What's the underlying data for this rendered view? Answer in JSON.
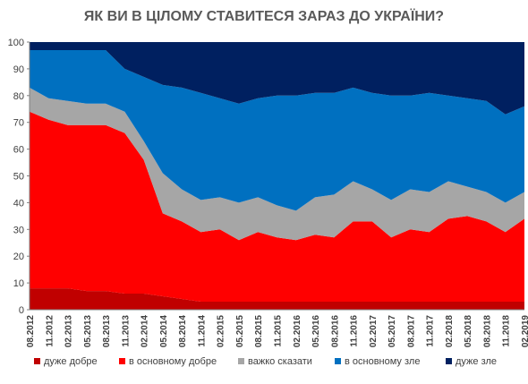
{
  "chart_data": {
    "type": "area",
    "stacked": true,
    "title": "ЯК ВИ В ЦІЛОМУ СТАВИТЕСЯ ЗАРАЗ ДО УКРАЇНИ?",
    "xlabel": "",
    "ylabel": "",
    "ylim": [
      0,
      100
    ],
    "yticks": [
      0,
      10,
      20,
      30,
      40,
      50,
      60,
      70,
      80,
      90,
      100
    ],
    "grid": false,
    "legend_position": "bottom",
    "x": [
      "08.2012",
      "11.2012",
      "02.2013",
      "05.2013",
      "08.2013",
      "11.2013",
      "02.2014",
      "05.2014",
      "08.2014",
      "11.2014",
      "02.2015",
      "05.2015",
      "08.2015",
      "11.2015",
      "02.2016",
      "05.2016",
      "08.2016",
      "11.2016",
      "02.2017",
      "05.2017",
      "08.2017",
      "11.2017",
      "02.2018",
      "05.2018",
      "08.2018",
      "11.2018",
      "02.2019"
    ],
    "series": [
      {
        "name": "дуже добре",
        "color": "#c00000",
        "values": [
          8,
          8,
          8,
          7,
          7,
          6,
          6,
          5,
          4,
          3,
          3,
          3,
          3,
          3,
          3,
          3,
          3,
          3,
          3,
          3,
          3,
          3,
          3,
          3,
          3,
          3,
          3
        ]
      },
      {
        "name": "в основному добре",
        "color": "#ff0000",
        "values": [
          66,
          63,
          61,
          62,
          62,
          60,
          50,
          31,
          29,
          26,
          27,
          23,
          26,
          24,
          23,
          25,
          24,
          30,
          30,
          24,
          27,
          26,
          31,
          32,
          30,
          26,
          31
        ]
      },
      {
        "name": "важко сказати",
        "color": "#a6a6a6",
        "values": [
          9,
          8,
          9,
          8,
          8,
          8,
          7,
          15,
          12,
          12,
          12,
          14,
          13,
          12,
          11,
          14,
          16,
          15,
          12,
          14,
          15,
          15,
          14,
          11,
          11,
          11,
          10
        ]
      },
      {
        "name": "в основному зле",
        "color": "#0070c0",
        "values": [
          14,
          18,
          19,
          20,
          20,
          16,
          24,
          33,
          38,
          40,
          37,
          37,
          37,
          41,
          43,
          39,
          38,
          35,
          36,
          39,
          35,
          37,
          32,
          33,
          34,
          33,
          32
        ]
      },
      {
        "name": "дуже зле",
        "color": "#002060",
        "values": [
          3,
          3,
          3,
          3,
          3,
          10,
          13,
          16,
          17,
          19,
          21,
          23,
          21,
          20,
          20,
          19,
          19,
          17,
          19,
          20,
          20,
          19,
          20,
          21,
          22,
          27,
          24
        ]
      }
    ]
  }
}
